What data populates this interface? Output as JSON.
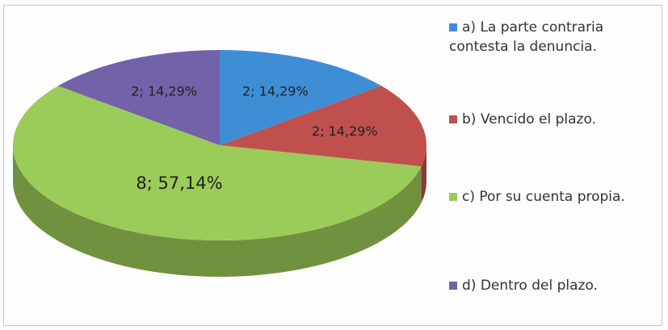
{
  "chart_data": {
    "type": "pie3d",
    "categories": [
      "a) La parte contraria contesta la denuncia.",
      "b) Vencido el plazo.",
      "c) Por su cuenta propia.",
      "d) Dentro del plazo."
    ],
    "values": [
      2,
      2,
      8,
      2
    ],
    "value_labels": [
      "2; 14,29%",
      "2; 14,29%",
      "8; 57,14%",
      "2; 14,29%"
    ],
    "colors": [
      "#3e8ed6",
      "#c0504d",
      "#9bcb58",
      "#7262aa"
    ],
    "legend": "right"
  }
}
